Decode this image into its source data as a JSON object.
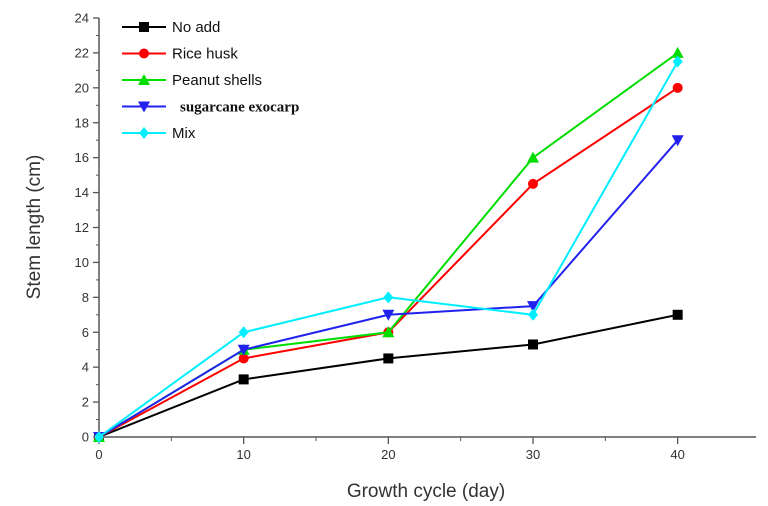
{
  "chart_data": {
    "type": "line",
    "title": "",
    "xlabel": "Growth cycle (day)",
    "ylabel": "Stem length (cm)",
    "xlim": [
      0,
      45
    ],
    "ylim": [
      0,
      24
    ],
    "x_ticks": [
      0,
      10,
      20,
      30,
      40
    ],
    "y_ticks": [
      0,
      2,
      4,
      6,
      8,
      10,
      12,
      14,
      16,
      18,
      20,
      22,
      24
    ],
    "grid": false,
    "legend_position": "top-left",
    "x": [
      0,
      10,
      20,
      30,
      40
    ],
    "series": [
      {
        "name": "No add",
        "color": "#000000",
        "marker": "square",
        "values": [
          0,
          3.3,
          4.5,
          5.3,
          7.0
        ]
      },
      {
        "name": "Rice husk",
        "color": "#ff0000",
        "marker": "circle",
        "values": [
          0,
          4.5,
          6.0,
          14.5,
          20.0
        ]
      },
      {
        "name": "Peanut shells",
        "color": "#00dd00",
        "marker": "triangle-up",
        "values": [
          0,
          5.0,
          6.0,
          16.0,
          22.0
        ]
      },
      {
        "name": "sugarcane exocarp",
        "color": "#2222ee",
        "marker": "triangle-down",
        "values": [
          0,
          5.0,
          7.0,
          7.5,
          17.0
        ]
      },
      {
        "name": "Mix",
        "color": "#00eeff",
        "marker": "diamond",
        "values": [
          0,
          6.0,
          8.0,
          7.0,
          21.5
        ]
      }
    ]
  }
}
